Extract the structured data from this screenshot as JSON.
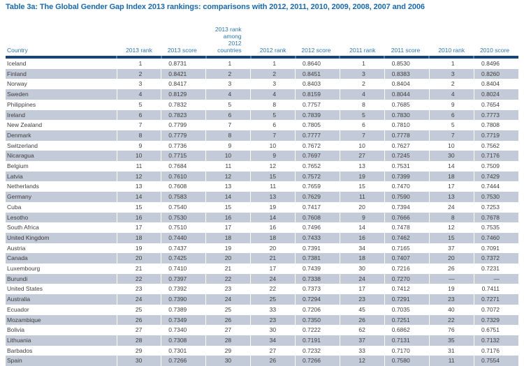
{
  "title": "Table 3a: The Global Gender Gap Index 2013 rankings: comparisons with 2012, 2011, 2010, 2009, 2008, 2007 and 2006",
  "colors": {
    "title_blue": "#1769b4",
    "header_blue": "#2b76b8",
    "divider_navy": "#1a4472",
    "divider_tick_blue": "#4e80b5",
    "row_stripe": "#c3cbd8",
    "row_text": "#3d3d3d"
  },
  "table": {
    "columns": [
      "Country",
      "2013 rank",
      "2013 score",
      "2013 rank among\n2012 countries",
      "2012 rank",
      "2012 score",
      "2011 rank",
      "2011 score",
      "2010 rank",
      "2010 score"
    ],
    "rows": [
      [
        "Iceland",
        "1",
        "0.8731",
        "1",
        "1",
        "0.8640",
        "1",
        "0.8530",
        "1",
        "0.8496"
      ],
      [
        "Finland",
        "2",
        "0.8421",
        "2",
        "2",
        "0.8451",
        "3",
        "0.8383",
        "3",
        "0.8260"
      ],
      [
        "Norway",
        "3",
        "0.8417",
        "3",
        "3",
        "0.8403",
        "2",
        "0.8404",
        "2",
        "0.8404"
      ],
      [
        "Sweden",
        "4",
        "0.8129",
        "4",
        "4",
        "0.8159",
        "4",
        "0.8044",
        "4",
        "0.8024"
      ],
      [
        "Philippines",
        "5",
        "0.7832",
        "5",
        "8",
        "0.7757",
        "8",
        "0.7685",
        "9",
        "0.7654"
      ],
      [
        "Ireland",
        "6",
        "0.7823",
        "6",
        "5",
        "0.7839",
        "5",
        "0.7830",
        "6",
        "0.7773"
      ],
      [
        "New Zealand",
        "7",
        "0.7799",
        "7",
        "6",
        "0.7805",
        "6",
        "0.7810",
        "5",
        "0.7808"
      ],
      [
        "Denmark",
        "8",
        "0.7779",
        "8",
        "7",
        "0.7777",
        "7",
        "0.7778",
        "7",
        "0.7719"
      ],
      [
        "Switzerland",
        "9",
        "0.7736",
        "9",
        "10",
        "0.7672",
        "10",
        "0.7627",
        "10",
        "0.7562"
      ],
      [
        "Nicaragua",
        "10",
        "0.7715",
        "10",
        "9",
        "0.7697",
        "27",
        "0.7245",
        "30",
        "0.7176"
      ],
      [
        "Belgium",
        "11",
        "0.7684",
        "11",
        "12",
        "0.7652",
        "13",
        "0.7531",
        "14",
        "0.7509"
      ],
      [
        "Latvia",
        "12",
        "0.7610",
        "12",
        "15",
        "0.7572",
        "19",
        "0.7399",
        "18",
        "0.7429"
      ],
      [
        "Netherlands",
        "13",
        "0.7608",
        "13",
        "11",
        "0.7659",
        "15",
        "0.7470",
        "17",
        "0.7444"
      ],
      [
        "Germany",
        "14",
        "0.7583",
        "14",
        "13",
        "0.7629",
        "11",
        "0.7590",
        "13",
        "0.7530"
      ],
      [
        "Cuba",
        "15",
        "0.7540",
        "15",
        "19",
        "0.7417",
        "20",
        "0.7394",
        "24",
        "0.7253"
      ],
      [
        "Lesotho",
        "16",
        "0.7530",
        "16",
        "14",
        "0.7608",
        "9",
        "0.7666",
        "8",
        "0.7678"
      ],
      [
        "South Africa",
        "17",
        "0.7510",
        "17",
        "16",
        "0.7496",
        "14",
        "0.7478",
        "12",
        "0.7535"
      ],
      [
        "United Kingdom",
        "18",
        "0.7440",
        "18",
        "18",
        "0.7433",
        "16",
        "0.7462",
        "15",
        "0.7460"
      ],
      [
        "Austria",
        "19",
        "0.7437",
        "19",
        "20",
        "0.7391",
        "34",
        "0.7165",
        "37",
        "0.7091"
      ],
      [
        "Canada",
        "20",
        "0.7425",
        "20",
        "21",
        "0.7381",
        "18",
        "0.7407",
        "20",
        "0.7372"
      ],
      [
        "Luxembourg",
        "21",
        "0.7410",
        "21",
        "17",
        "0.7439",
        "30",
        "0.7216",
        "26",
        "0.7231"
      ],
      [
        "Burundi",
        "22",
        "0.7397",
        "22",
        "24",
        "0.7338",
        "24",
        "0.7270",
        "—",
        "—"
      ],
      [
        "United States",
        "23",
        "0.7392",
        "23",
        "22",
        "0.7373",
        "17",
        "0.7412",
        "19",
        "0.7411"
      ],
      [
        "Australia",
        "24",
        "0.7390",
        "24",
        "25",
        "0.7294",
        "23",
        "0.7291",
        "23",
        "0.7271"
      ],
      [
        "Ecuador",
        "25",
        "0.7389",
        "25",
        "33",
        "0.7206",
        "45",
        "0.7035",
        "40",
        "0.7072"
      ],
      [
        "Mozambique",
        "26",
        "0.7349",
        "26",
        "23",
        "0.7350",
        "26",
        "0.7251",
        "22",
        "0.7329"
      ],
      [
        "Bolivia",
        "27",
        "0.7340",
        "27",
        "30",
        "0.7222",
        "62",
        "0.6862",
        "76",
        "0.6751"
      ],
      [
        "Lithuania",
        "28",
        "0.7308",
        "28",
        "34",
        "0.7191",
        "37",
        "0.7131",
        "35",
        "0.7132"
      ],
      [
        "Barbados",
        "29",
        "0.7301",
        "29",
        "27",
        "0.7232",
        "33",
        "0.7170",
        "31",
        "0.7176"
      ],
      [
        "Spain",
        "30",
        "0.7266",
        "30",
        "26",
        "0.7266",
        "12",
        "0.7580",
        "11",
        "0.7554"
      ]
    ]
  }
}
